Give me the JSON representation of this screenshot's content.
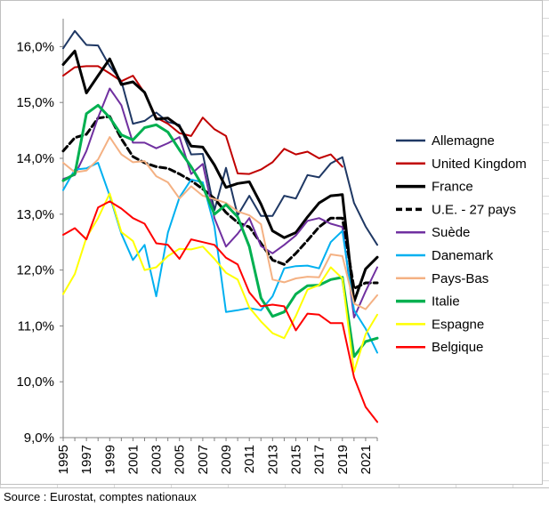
{
  "source_note": "Source : Eurostat, comptes nationaux",
  "chart_data": {
    "type": "line",
    "title": "",
    "xlabel": "",
    "ylabel": "",
    "x": [
      1995,
      1996,
      1997,
      1998,
      1999,
      2000,
      2001,
      2002,
      2003,
      2004,
      2005,
      2006,
      2007,
      2008,
      2009,
      2010,
      2011,
      2012,
      2013,
      2014,
      2015,
      2016,
      2017,
      2018,
      2019,
      2020,
      2021,
      2022
    ],
    "x_tick_labels": [
      "1995",
      "1997",
      "1999",
      "2001",
      "2003",
      "2005",
      "2007",
      "2009",
      "2011",
      "2013",
      "2015",
      "2017",
      "2019",
      "2021"
    ],
    "y_tick_labels": [
      "9,0%",
      "10,0%",
      "11,0%",
      "12,0%",
      "13,0%",
      "14,0%",
      "15,0%",
      "16,0%"
    ],
    "ylim": [
      9.0,
      16.5
    ],
    "grid": false,
    "legend_position": "right",
    "series": [
      {
        "name": "Allemagne",
        "color": "#1f3864",
        "dash": false,
        "width": 2,
        "values": [
          15.97,
          16.28,
          16.03,
          16.02,
          15.65,
          15.38,
          14.62,
          14.67,
          14.82,
          14.65,
          14.6,
          14.07,
          14.08,
          13.07,
          13.83,
          12.98,
          13.33,
          12.97,
          12.97,
          13.33,
          13.28,
          13.7,
          13.66,
          13.91,
          14.02,
          13.2,
          12.78,
          12.45
        ]
      },
      {
        "name": "United Kingdom",
        "color": "#c00000",
        "dash": false,
        "width": 2,
        "values": [
          15.48,
          15.63,
          15.65,
          15.65,
          15.52,
          15.38,
          15.48,
          15.17,
          14.73,
          14.62,
          14.45,
          14.4,
          14.73,
          14.52,
          14.4,
          13.73,
          13.72,
          13.8,
          13.93,
          14.17,
          14.07,
          14.12,
          14.0,
          14.07,
          13.85,
          null,
          null,
          null
        ]
      },
      {
        "name": "France",
        "color": "#000000",
        "dash": false,
        "width": 3,
        "values": [
          15.68,
          15.92,
          15.17,
          15.48,
          15.78,
          15.32,
          15.37,
          15.18,
          14.7,
          14.72,
          14.57,
          14.22,
          14.2,
          13.88,
          13.48,
          13.55,
          13.58,
          13.18,
          12.7,
          12.58,
          12.67,
          12.95,
          13.2,
          13.33,
          13.35,
          11.43,
          12.02,
          12.23
        ]
      },
      {
        "name": "U.E. - 27 pays",
        "color": "#000000",
        "dash": true,
        "width": 3,
        "values": [
          14.13,
          14.37,
          14.43,
          14.72,
          14.75,
          14.35,
          14.03,
          13.92,
          13.85,
          13.82,
          13.72,
          13.6,
          13.45,
          13.28,
          13.03,
          12.85,
          12.77,
          12.48,
          12.18,
          12.1,
          12.3,
          12.53,
          12.77,
          12.93,
          12.93,
          11.67,
          11.77,
          11.77
        ]
      },
      {
        "name": "Suède",
        "color": "#7030a0",
        "dash": false,
        "width": 2,
        "values": [
          13.63,
          13.7,
          14.13,
          14.73,
          15.25,
          14.95,
          14.28,
          14.28,
          14.18,
          14.27,
          14.38,
          13.72,
          13.9,
          12.93,
          12.42,
          12.65,
          12.93,
          12.43,
          12.3,
          12.45,
          12.62,
          12.88,
          12.93,
          12.83,
          12.77,
          11.15,
          11.62,
          12.05
        ]
      },
      {
        "name": "Danemark",
        "color": "#00b0f0",
        "dash": false,
        "width": 2,
        "values": [
          13.43,
          13.8,
          13.82,
          13.92,
          13.33,
          12.65,
          12.18,
          12.45,
          11.53,
          12.67,
          13.3,
          13.62,
          13.57,
          12.78,
          11.25,
          11.28,
          11.32,
          11.28,
          11.53,
          12.03,
          12.07,
          12.08,
          12.03,
          12.5,
          12.7,
          11.28,
          10.95,
          10.52
        ]
      },
      {
        "name": "Pays-Bas",
        "color": "#f4b183",
        "dash": false,
        "width": 2,
        "values": [
          13.92,
          13.75,
          13.78,
          13.98,
          14.38,
          14.07,
          13.93,
          13.95,
          13.68,
          13.57,
          13.28,
          13.5,
          13.33,
          13.27,
          13.2,
          13.05,
          12.98,
          12.82,
          11.83,
          11.78,
          11.85,
          11.88,
          11.87,
          12.28,
          12.25,
          11.4,
          11.3,
          11.55
        ]
      },
      {
        "name": "Italie",
        "color": "#00b050",
        "dash": false,
        "width": 3,
        "values": [
          13.6,
          13.72,
          14.8,
          14.95,
          14.73,
          14.42,
          14.33,
          14.55,
          14.6,
          14.47,
          14.15,
          13.85,
          13.5,
          13.0,
          13.17,
          12.95,
          12.42,
          11.5,
          11.17,
          11.25,
          11.57,
          11.72,
          11.73,
          11.83,
          11.87,
          10.45,
          10.72,
          10.78
        ]
      },
      {
        "name": "Espagne",
        "color": "#ffff00",
        "dash": false,
        "width": 2,
        "values": [
          11.57,
          11.93,
          12.58,
          12.93,
          13.37,
          12.68,
          12.52,
          12.0,
          12.05,
          12.25,
          12.38,
          12.37,
          12.42,
          12.2,
          11.95,
          11.83,
          11.33,
          11.08,
          10.87,
          10.78,
          11.18,
          11.65,
          11.73,
          12.05,
          11.85,
          10.18,
          10.85,
          11.2
        ]
      },
      {
        "name": "Belgique",
        "color": "#ff0000",
        "dash": false,
        "width": 2,
        "values": [
          12.63,
          12.75,
          12.55,
          13.12,
          13.23,
          13.1,
          12.93,
          12.83,
          12.48,
          12.45,
          12.2,
          12.55,
          12.5,
          12.45,
          12.22,
          12.1,
          11.6,
          11.35,
          11.38,
          11.35,
          10.92,
          11.22,
          11.2,
          11.05,
          11.05,
          10.08,
          9.55,
          9.28
        ]
      }
    ]
  }
}
